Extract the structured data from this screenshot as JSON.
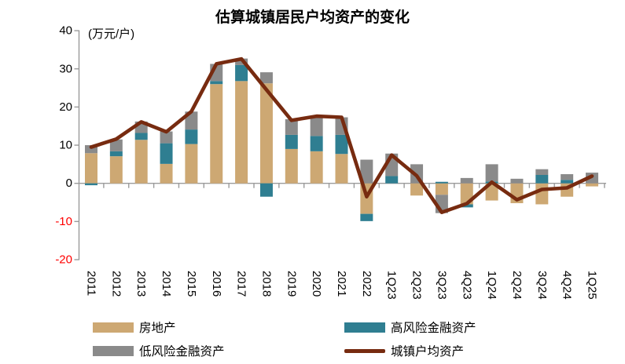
{
  "page": {
    "title": "估算城镇居民户均资产的变化",
    "unit_label": "(万元/户)"
  },
  "colors": {
    "real_estate": "#CDA873",
    "high_risk": "#2F7E91",
    "low_risk": "#8A8A8A",
    "total_line": "#772B10",
    "axis": "#9B9B9B",
    "tick_label_positive": "#000000",
    "tick_label_negative": "#FF0000"
  },
  "chart_data": {
    "type": "bar",
    "subtype": "stacked-bars-with-line-overlay",
    "title": "估算城镇居民户均资产的变化",
    "ylabel": "(万元/户)",
    "ylim": [
      -20,
      40
    ],
    "y_ticks": [
      40,
      30,
      20,
      10,
      0,
      -10,
      -20
    ],
    "grid": false,
    "legend_position": "bottom",
    "categories": [
      "2011",
      "2012",
      "2013",
      "2014",
      "2015",
      "2016",
      "2017",
      "2018",
      "2019",
      "2020",
      "2021",
      "2022",
      "1Q23",
      "2Q23",
      "3Q23",
      "4Q23",
      "1Q24",
      "2Q24",
      "3Q24",
      "4Q24",
      "1Q25"
    ],
    "series": [
      {
        "name": "房地产",
        "color_key": "real_estate",
        "values": [
          7.9,
          7.1,
          11.4,
          5.1,
          10.3,
          26.0,
          26.8,
          26.2,
          9.0,
          8.4,
          7.7,
          -8.0,
          0,
          -3.2,
          -3.0,
          -5.5,
          -4.5,
          -5.2,
          -5.5,
          -3.5,
          -0.8
        ]
      },
      {
        "name": "高风险金融资产",
        "color_key": "high_risk",
        "values": [
          -0.5,
          1.3,
          1.8,
          5.4,
          3.8,
          0.8,
          4.2,
          -3.5,
          3.7,
          4.0,
          5.0,
          -1.9,
          1.9,
          0,
          0.4,
          -0.8,
          0.5,
          0,
          2.2,
          0.9,
          0
        ]
      },
      {
        "name": "低风险金融资产",
        "color_key": "low_risk",
        "values": [
          2.1,
          3.1,
          3.0,
          3.1,
          4.7,
          4.5,
          1.7,
          2.9,
          4.1,
          5.1,
          4.6,
          6.2,
          5.9,
          5.0,
          -4.8,
          1.4,
          4.5,
          1.2,
          1.5,
          1.5,
          2.8
        ]
      }
    ],
    "line": {
      "name": "城镇户均资产",
      "color_key": "total_line",
      "values": [
        9.5,
        11.6,
        16.1,
        13.5,
        18.8,
        31.3,
        32.6,
        24.5,
        16.5,
        17.6,
        17.3,
        -3.5,
        7.4,
        2.0,
        -7.6,
        -5.3,
        0.3,
        -4.3,
        -1.6,
        -1.2,
        1.9
      ]
    }
  }
}
